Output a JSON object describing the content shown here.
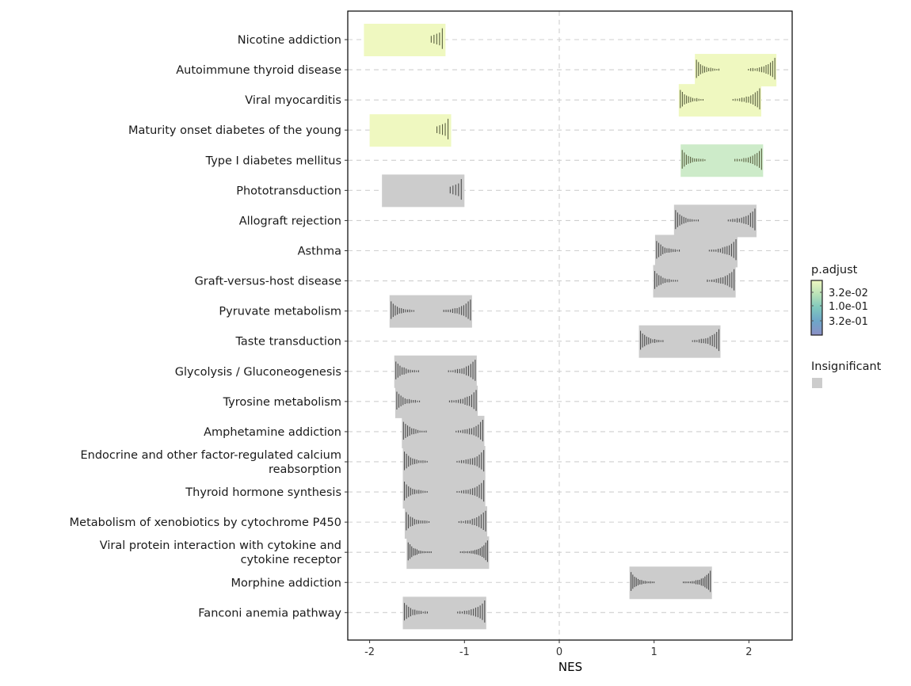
{
  "chart_data": {
    "type": "ridgeline-barcode",
    "title": "",
    "xlabel": "NES",
    "ylabel": "",
    "xlim": [
      -2.2,
      2.45
    ],
    "x_ticks": [
      -2,
      -1,
      0,
      1,
      2
    ],
    "x_tick_labels": [
      "-2",
      "-1",
      "0",
      "1",
      "2"
    ],
    "grid": "dashed horizontal at each pathway, dashed vertical at 0",
    "insignificant_color": "#cccccc",
    "categories": [
      "Nicotine addiction",
      "Autoimmune thyroid disease",
      "Viral myocarditis",
      "Maturity onset diabetes of the young",
      "Type I diabetes mellitus",
      "Phototransduction",
      "Allograft rejection",
      "Asthma",
      "Graft-versus-host disease",
      "Pyruvate metabolism",
      "Taste transduction",
      "Glycolysis / Gluconeogenesis",
      "Tyrosine metabolism",
      "Amphetamine addiction",
      "Endocrine and other factor-regulated calcium reabsorption",
      "Thyroid hormone synthesis",
      "Metabolism of xenobiotics by cytochrome P450",
      "Viral protein interaction with cytokine and cytokine receptor",
      "Morphine addiction",
      "Fanconi anemia pathway"
    ],
    "category_label_lines": [
      [
        "Nicotine addiction"
      ],
      [
        "Autoimmune thyroid disease"
      ],
      [
        "Viral myocarditis"
      ],
      [
        "Maturity onset diabetes of the young"
      ],
      [
        "Type I diabetes mellitus"
      ],
      [
        "Phototransduction"
      ],
      [
        "Allograft rejection"
      ],
      [
        "Asthma"
      ],
      [
        "Graft-versus-host disease"
      ],
      [
        "Pyruvate metabolism"
      ],
      [
        "Taste transduction"
      ],
      [
        "Glycolysis / Gluconeogenesis"
      ],
      [
        "Tyrosine metabolism"
      ],
      [
        "Amphetamine addiction"
      ],
      [
        "Endocrine and other factor-regulated calcium",
        "reabsorption"
      ],
      [
        "Thyroid hormone synthesis"
      ],
      [
        "Metabolism of xenobiotics by cytochrome P450"
      ],
      [
        "Viral protein interaction with cytokine and",
        "cytokine receptor"
      ],
      [
        "Morphine addiction"
      ],
      [
        "Fanconi anemia pathway"
      ]
    ],
    "series": [
      {
        "name": "Nicotine addiction",
        "nes_range": [
          -2.06,
          -1.2
        ],
        "significant": true,
        "p_adjust": 0.02,
        "fill": "#eff8c0",
        "bars": "sparse-right"
      },
      {
        "name": "Autoimmune thyroid disease",
        "nes_range": [
          1.43,
          2.29
        ],
        "significant": true,
        "p_adjust": 0.02,
        "fill": "#eff8c0",
        "bars": "both"
      },
      {
        "name": "Viral myocarditis",
        "nes_range": [
          1.26,
          2.13
        ],
        "significant": true,
        "p_adjust": 0.02,
        "fill": "#eff8c0",
        "bars": "both"
      },
      {
        "name": "Maturity onset diabetes of the young",
        "nes_range": [
          -2.0,
          -1.14
        ],
        "significant": true,
        "p_adjust": 0.02,
        "fill": "#eff8c0",
        "bars": "sparse-right"
      },
      {
        "name": "Type I diabetes mellitus",
        "nes_range": [
          1.28,
          2.15
        ],
        "significant": true,
        "p_adjust": 0.05,
        "fill": "#cdebc9",
        "bars": "both"
      },
      {
        "name": "Phototransduction",
        "nes_range": [
          -1.87,
          -1.0
        ],
        "significant": false,
        "fill": "#cccccc",
        "bars": "sparse-right"
      },
      {
        "name": "Allograft rejection",
        "nes_range": [
          1.21,
          2.08
        ],
        "significant": false,
        "fill": "#cccccc",
        "bars": "both"
      },
      {
        "name": "Asthma",
        "nes_range": [
          1.01,
          1.88
        ],
        "significant": false,
        "fill": "#cccccc",
        "bars": "both"
      },
      {
        "name": "Graft-versus-host disease",
        "nes_range": [
          0.99,
          1.86
        ],
        "significant": false,
        "fill": "#cccccc",
        "bars": "both"
      },
      {
        "name": "Pyruvate metabolism",
        "nes_range": [
          -1.79,
          -0.92
        ],
        "significant": false,
        "fill": "#cccccc",
        "bars": "both"
      },
      {
        "name": "Taste transduction",
        "nes_range": [
          0.84,
          1.7
        ],
        "significant": false,
        "fill": "#cccccc",
        "bars": "both"
      },
      {
        "name": "Glycolysis / Gluconeogenesis",
        "nes_range": [
          -1.74,
          -0.87
        ],
        "significant": false,
        "fill": "#cccccc",
        "bars": "both"
      },
      {
        "name": "Tyrosine metabolism",
        "nes_range": [
          -1.73,
          -0.86
        ],
        "significant": false,
        "fill": "#cccccc",
        "bars": "both"
      },
      {
        "name": "Amphetamine addiction",
        "nes_range": [
          -1.66,
          -0.79
        ],
        "significant": false,
        "fill": "#cccccc",
        "bars": "both"
      },
      {
        "name": "Endocrine and other factor-regulated calcium reabsorption",
        "nes_range": [
          -1.65,
          -0.78
        ],
        "significant": false,
        "fill": "#cccccc",
        "bars": "both"
      },
      {
        "name": "Thyroid hormone synthesis",
        "nes_range": [
          -1.65,
          -0.78
        ],
        "significant": false,
        "fill": "#cccccc",
        "bars": "both"
      },
      {
        "name": "Metabolism of xenobiotics by cytochrome P450",
        "nes_range": [
          -1.63,
          -0.76
        ],
        "significant": false,
        "fill": "#cccccc",
        "bars": "both"
      },
      {
        "name": "Viral protein interaction with cytokine and cytokine receptor",
        "nes_range": [
          -1.61,
          -0.74
        ],
        "significant": false,
        "fill": "#cccccc",
        "bars": "dense"
      },
      {
        "name": "Morphine addiction",
        "nes_range": [
          0.74,
          1.61
        ],
        "significant": false,
        "fill": "#cccccc",
        "bars": "dense"
      },
      {
        "name": "Fanconi anemia pathway",
        "nes_range": [
          -1.65,
          -0.77
        ],
        "significant": false,
        "fill": "#cccccc",
        "bars": "both"
      }
    ],
    "legend": {
      "placement": "right",
      "colorbar": {
        "title": "p.adjust",
        "labels": [
          "3.2e-02",
          "1.0e-01",
          "3.2e-01"
        ],
        "colors": [
          "#eff8c0",
          "#b9e3b8",
          "#7fc8bd",
          "#6ea6c9",
          "#8c8fc6"
        ]
      },
      "insignificant": {
        "title": "Insignificant",
        "color": "#cccccc"
      }
    }
  }
}
